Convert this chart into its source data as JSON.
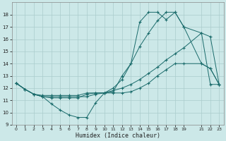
{
  "title": "",
  "xlabel": "Humidex (Indice chaleur)",
  "bg_color": "#cce8e8",
  "line_color": "#1a6b6b",
  "grid_color": "#aacccc",
  "ylim": [
    9,
    19
  ],
  "xlim": [
    -0.5,
    23.5
  ],
  "ytick_vals": [
    9,
    10,
    11,
    12,
    13,
    14,
    15,
    16,
    17,
    18
  ],
  "xtick_vals": [
    0,
    1,
    2,
    3,
    4,
    5,
    6,
    7,
    8,
    9,
    10,
    11,
    12,
    13,
    14,
    15,
    16,
    17,
    18,
    19,
    21,
    22,
    23
  ],
  "series": [
    {
      "x": [
        0,
        1,
        2,
        3,
        4,
        5,
        6,
        7,
        8,
        9,
        10,
        11,
        12,
        13,
        14,
        15,
        16,
        17,
        18,
        19,
        21,
        22,
        23
      ],
      "y": [
        12.4,
        11.9,
        11.5,
        11.3,
        10.7,
        10.2,
        9.8,
        9.6,
        9.6,
        10.8,
        11.6,
        11.7,
        13.0,
        14.0,
        17.4,
        18.2,
        18.2,
        17.6,
        18.2,
        17.0,
        16.5,
        12.3,
        12.3
      ]
    },
    {
      "x": [
        0,
        1,
        2,
        3,
        4,
        5,
        6,
        7,
        8,
        9,
        10,
        11,
        12,
        13,
        14,
        15,
        16,
        17,
        18,
        19,
        21,
        22,
        23
      ],
      "y": [
        12.4,
        11.9,
        11.5,
        11.4,
        11.4,
        11.4,
        11.4,
        11.4,
        11.6,
        11.6,
        11.6,
        11.8,
        12.0,
        12.3,
        12.7,
        13.2,
        13.7,
        14.3,
        14.8,
        15.3,
        16.5,
        16.2,
        12.3
      ]
    },
    {
      "x": [
        0,
        1,
        2,
        3,
        4,
        5,
        6,
        7,
        8,
        9,
        10,
        11,
        12,
        13,
        14,
        15,
        16,
        17,
        18,
        19,
        21,
        22,
        23
      ],
      "y": [
        12.4,
        11.9,
        11.5,
        11.3,
        11.3,
        11.3,
        11.3,
        11.3,
        11.3,
        11.5,
        11.6,
        12.0,
        12.7,
        14.0,
        15.4,
        16.5,
        17.5,
        18.2,
        18.2,
        17.0,
        14.0,
        13.6,
        12.3
      ]
    },
    {
      "x": [
        0,
        1,
        2,
        3,
        4,
        5,
        6,
        7,
        8,
        9,
        10,
        11,
        12,
        13,
        14,
        15,
        16,
        17,
        18,
        19,
        21,
        22,
        23
      ],
      "y": [
        12.4,
        11.9,
        11.5,
        11.3,
        11.2,
        11.2,
        11.2,
        11.2,
        11.5,
        11.6,
        11.6,
        11.6,
        11.6,
        11.7,
        12.0,
        12.4,
        13.0,
        13.5,
        14.0,
        14.0,
        14.0,
        13.6,
        12.3
      ]
    }
  ]
}
